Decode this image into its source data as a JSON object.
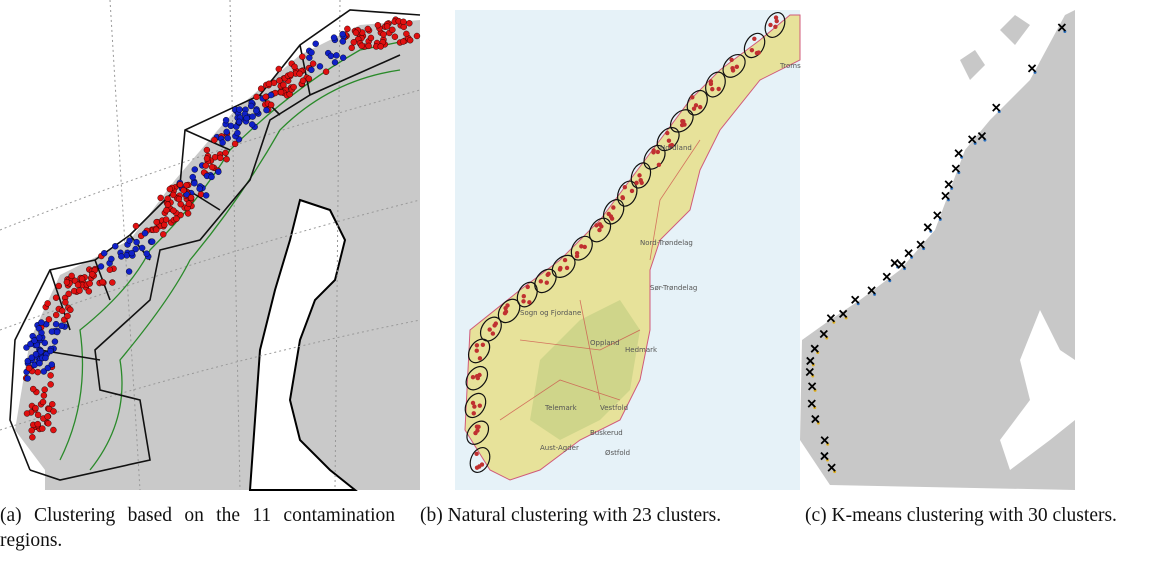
{
  "figures": [
    {
      "label": "(a)",
      "caption": "Clustering based on the 11 contamination regions."
    },
    {
      "label": "(b)",
      "caption": "Natural clustering with 23 clusters."
    },
    {
      "label": "(c)",
      "caption": "K-means clustering with 30 clusters."
    }
  ],
  "map_labels": [
    "Troms",
    "Nordland",
    "Nord-Trøndelag",
    "Sør-Trøndelag",
    "Sogn og Fjordane",
    "Oppland",
    "Hedmark",
    "Buskerud",
    "Telemark",
    "Vestfold",
    "Østfold",
    "Aust-Agder"
  ]
}
